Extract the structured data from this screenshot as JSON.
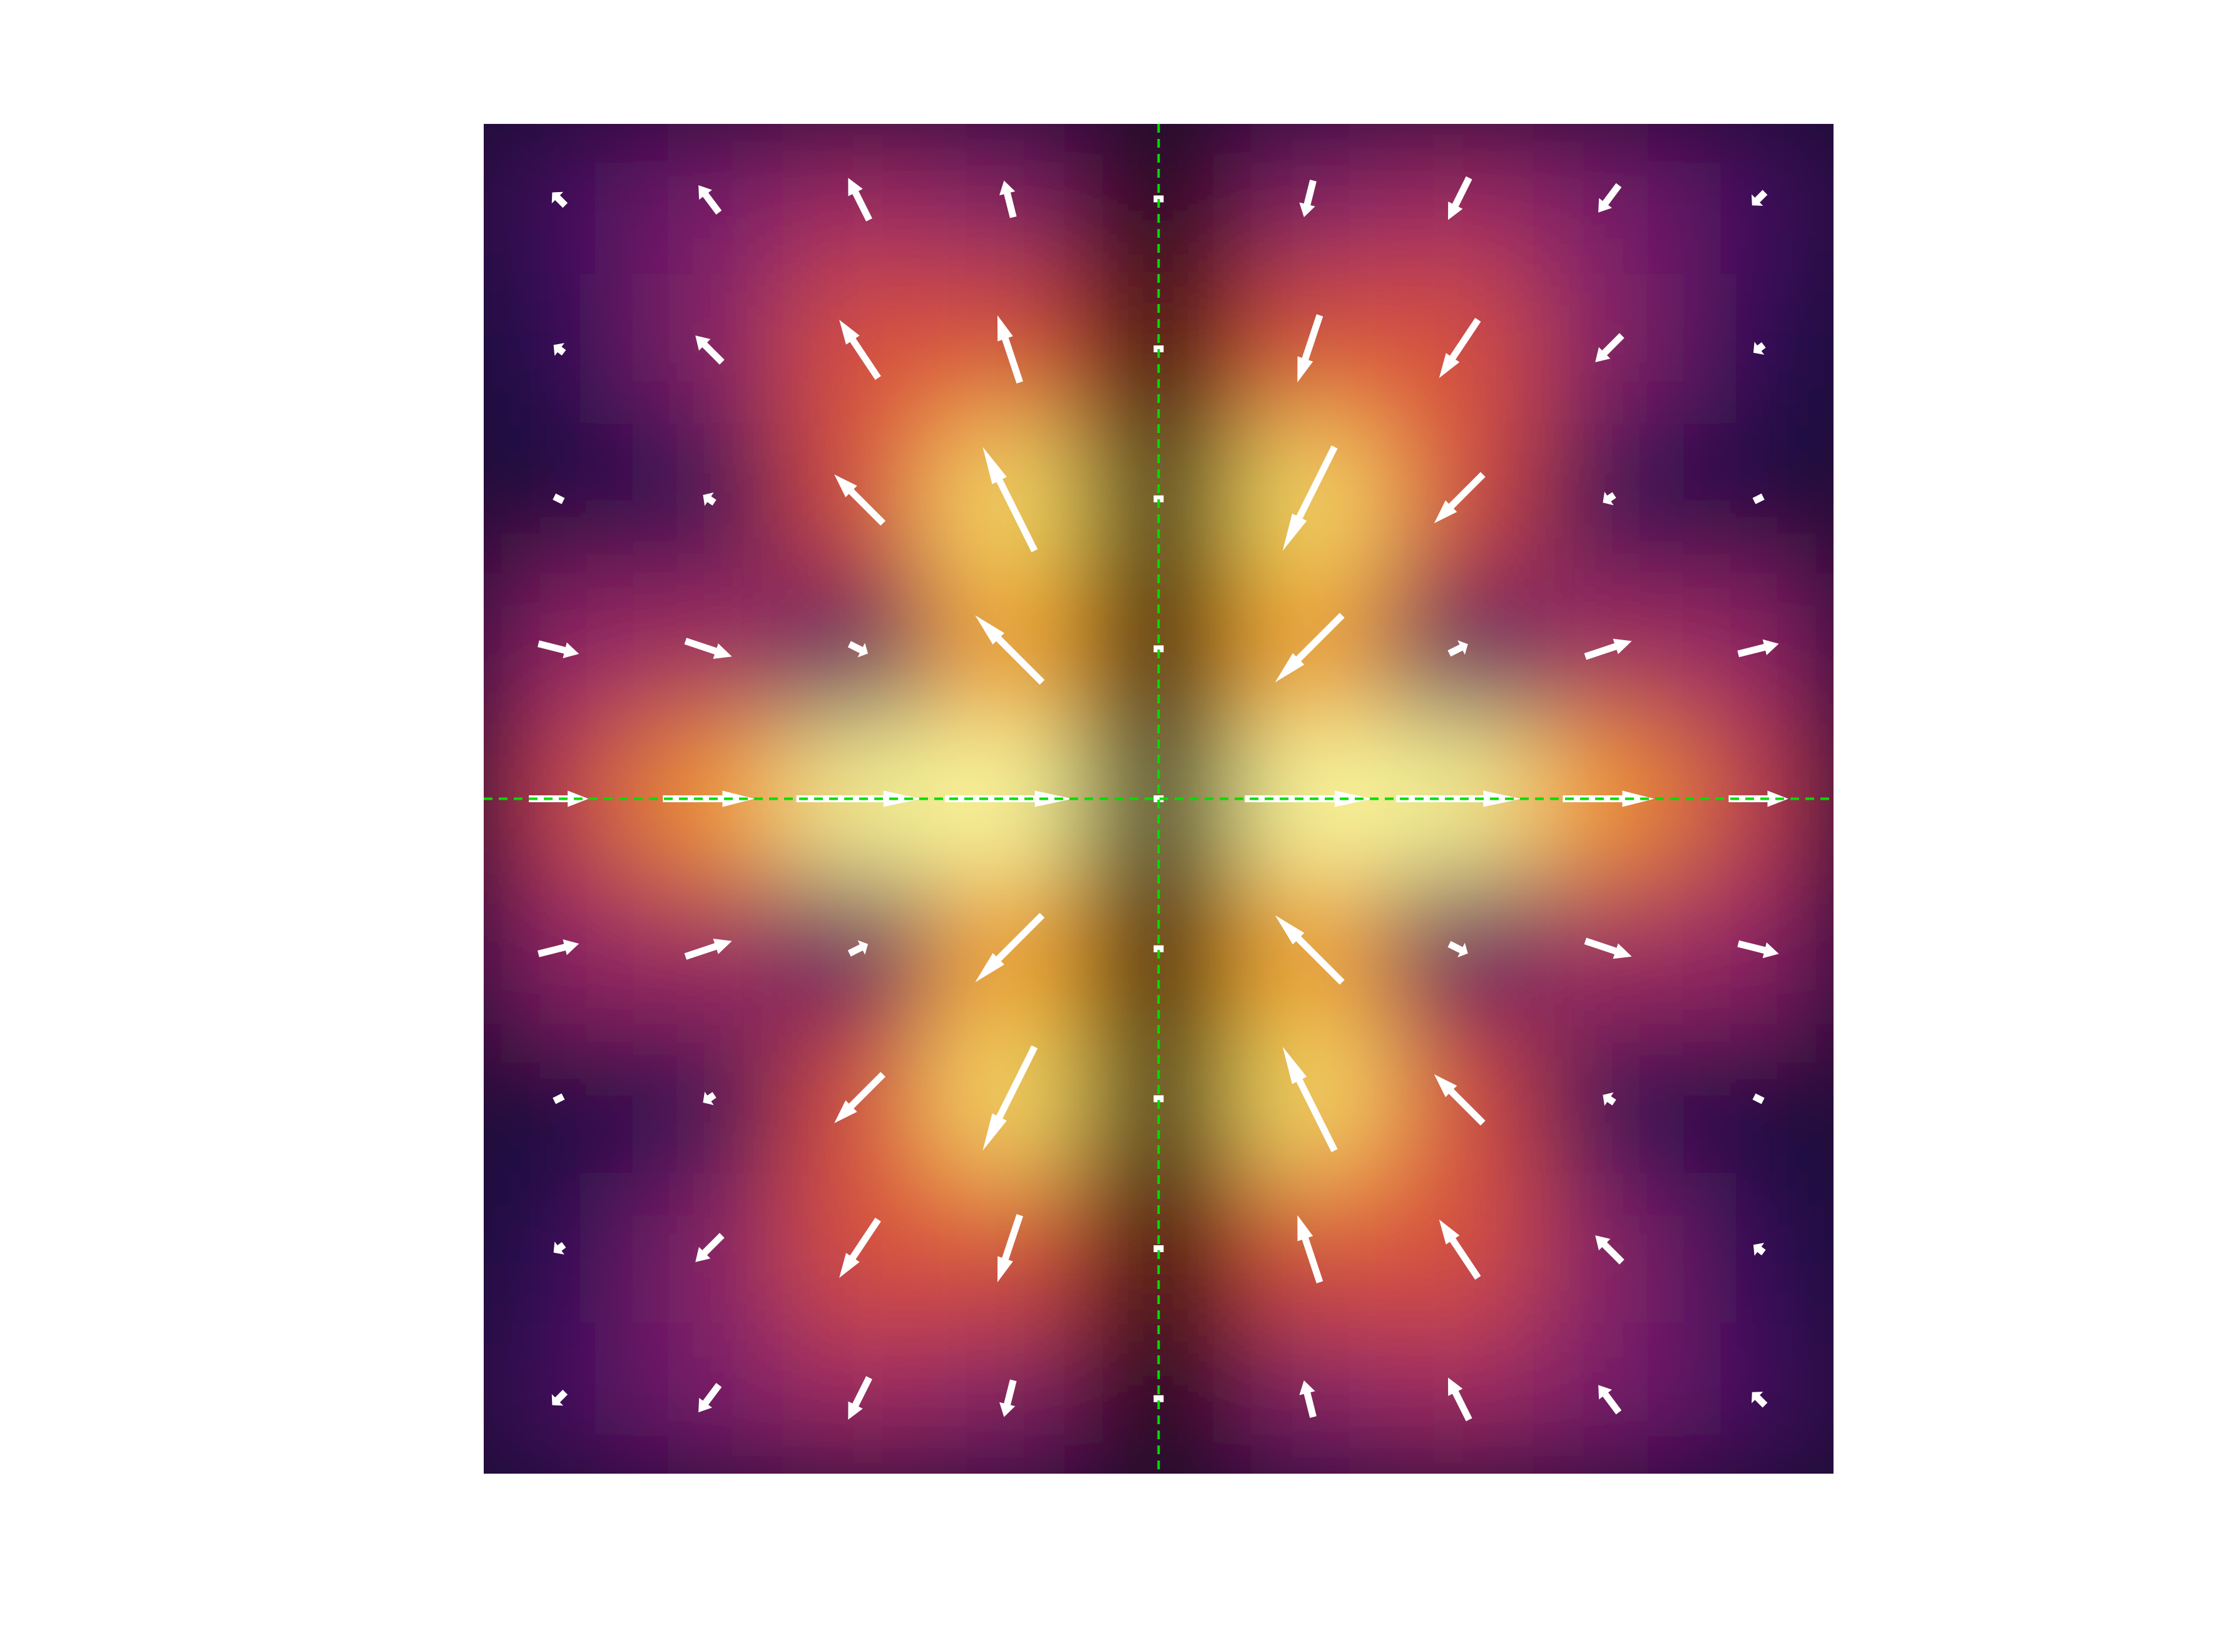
{
  "chart_data": {
    "type": "quiver",
    "x": [
      -1,
      -0.75,
      -0.5,
      -0.25,
      0,
      0.25,
      0.5,
      0.75,
      1
    ],
    "y": [
      1,
      0.75,
      0.5,
      0.25,
      0,
      -0.25,
      -0.5,
      -0.75,
      -1
    ],
    "u": [
      [
        -0.097,
        -0.153,
        -0.157,
        -0.069,
        0,
        -0.069,
        -0.157,
        -0.153,
        -0.097
      ],
      [
        -0.077,
        -0.199,
        -0.29,
        -0.167,
        0,
        -0.167,
        -0.29,
        -0.199,
        -0.077
      ],
      [
        0.056,
        -0.085,
        -0.364,
        -0.387,
        0,
        -0.387,
        -0.364,
        -0.085,
        0.056
      ],
      [
        0.303,
        0.347,
        0.139,
        -0.5,
        0,
        -0.5,
        0.139,
        0.347,
        0.303
      ],
      [
        0.446,
        0.683,
        0.93,
        0.951,
        0,
        0.951,
        0.93,
        0.683,
        0.446
      ],
      [
        0.303,
        0.347,
        0.139,
        -0.5,
        0,
        -0.5,
        0.139,
        0.347,
        0.303
      ],
      [
        0.056,
        -0.085,
        -0.364,
        -0.387,
        0,
        -0.387,
        -0.364,
        -0.085,
        0.056
      ],
      [
        -0.077,
        -0.199,
        -0.29,
        -0.167,
        0,
        -0.167,
        -0.29,
        -0.199,
        -0.077
      ],
      [
        -0.097,
        -0.153,
        -0.157,
        -0.069,
        0,
        -0.069,
        -0.157,
        -0.153,
        -0.097
      ]
    ],
    "v": [
      [
        0.097,
        0.204,
        0.314,
        0.274,
        0,
        -0.274,
        -0.314,
        -0.204,
        -0.097
      ],
      [
        0.058,
        0.199,
        0.435,
        0.501,
        0,
        -0.501,
        -0.435,
        -0.199,
        -0.058
      ],
      [
        -0.028,
        0.057,
        0.364,
        0.774,
        0,
        -0.774,
        -0.364,
        -0.057,
        0.028
      ],
      [
        -0.076,
        -0.116,
        -0.07,
        0.5,
        0,
        -0.5,
        0.07,
        0.116,
        0.076
      ],
      [
        0,
        0,
        0,
        0,
        0,
        0,
        0,
        0,
        0
      ],
      [
        0.076,
        0.116,
        0.07,
        -0.5,
        0,
        0.5,
        -0.07,
        -0.116,
        -0.076
      ],
      [
        0.028,
        -0.057,
        -0.364,
        -0.774,
        0,
        0.774,
        0.364,
        0.057,
        -0.028
      ],
      [
        -0.058,
        -0.199,
        -0.435,
        -0.501,
        0,
        0.501,
        0.435,
        0.199,
        0.058
      ],
      [
        -0.097,
        -0.204,
        -0.314,
        -0.274,
        0,
        0.274,
        0.314,
        0.204,
        0.097
      ]
    ],
    "xlim": [
      -1.125,
      1.125
    ],
    "ylim": [
      -1.125,
      1.125
    ],
    "color": "#ffffff",
    "colormap": "inferno",
    "crosshair": {
      "x": 0,
      "y": 0,
      "color": "#00dd00"
    }
  }
}
